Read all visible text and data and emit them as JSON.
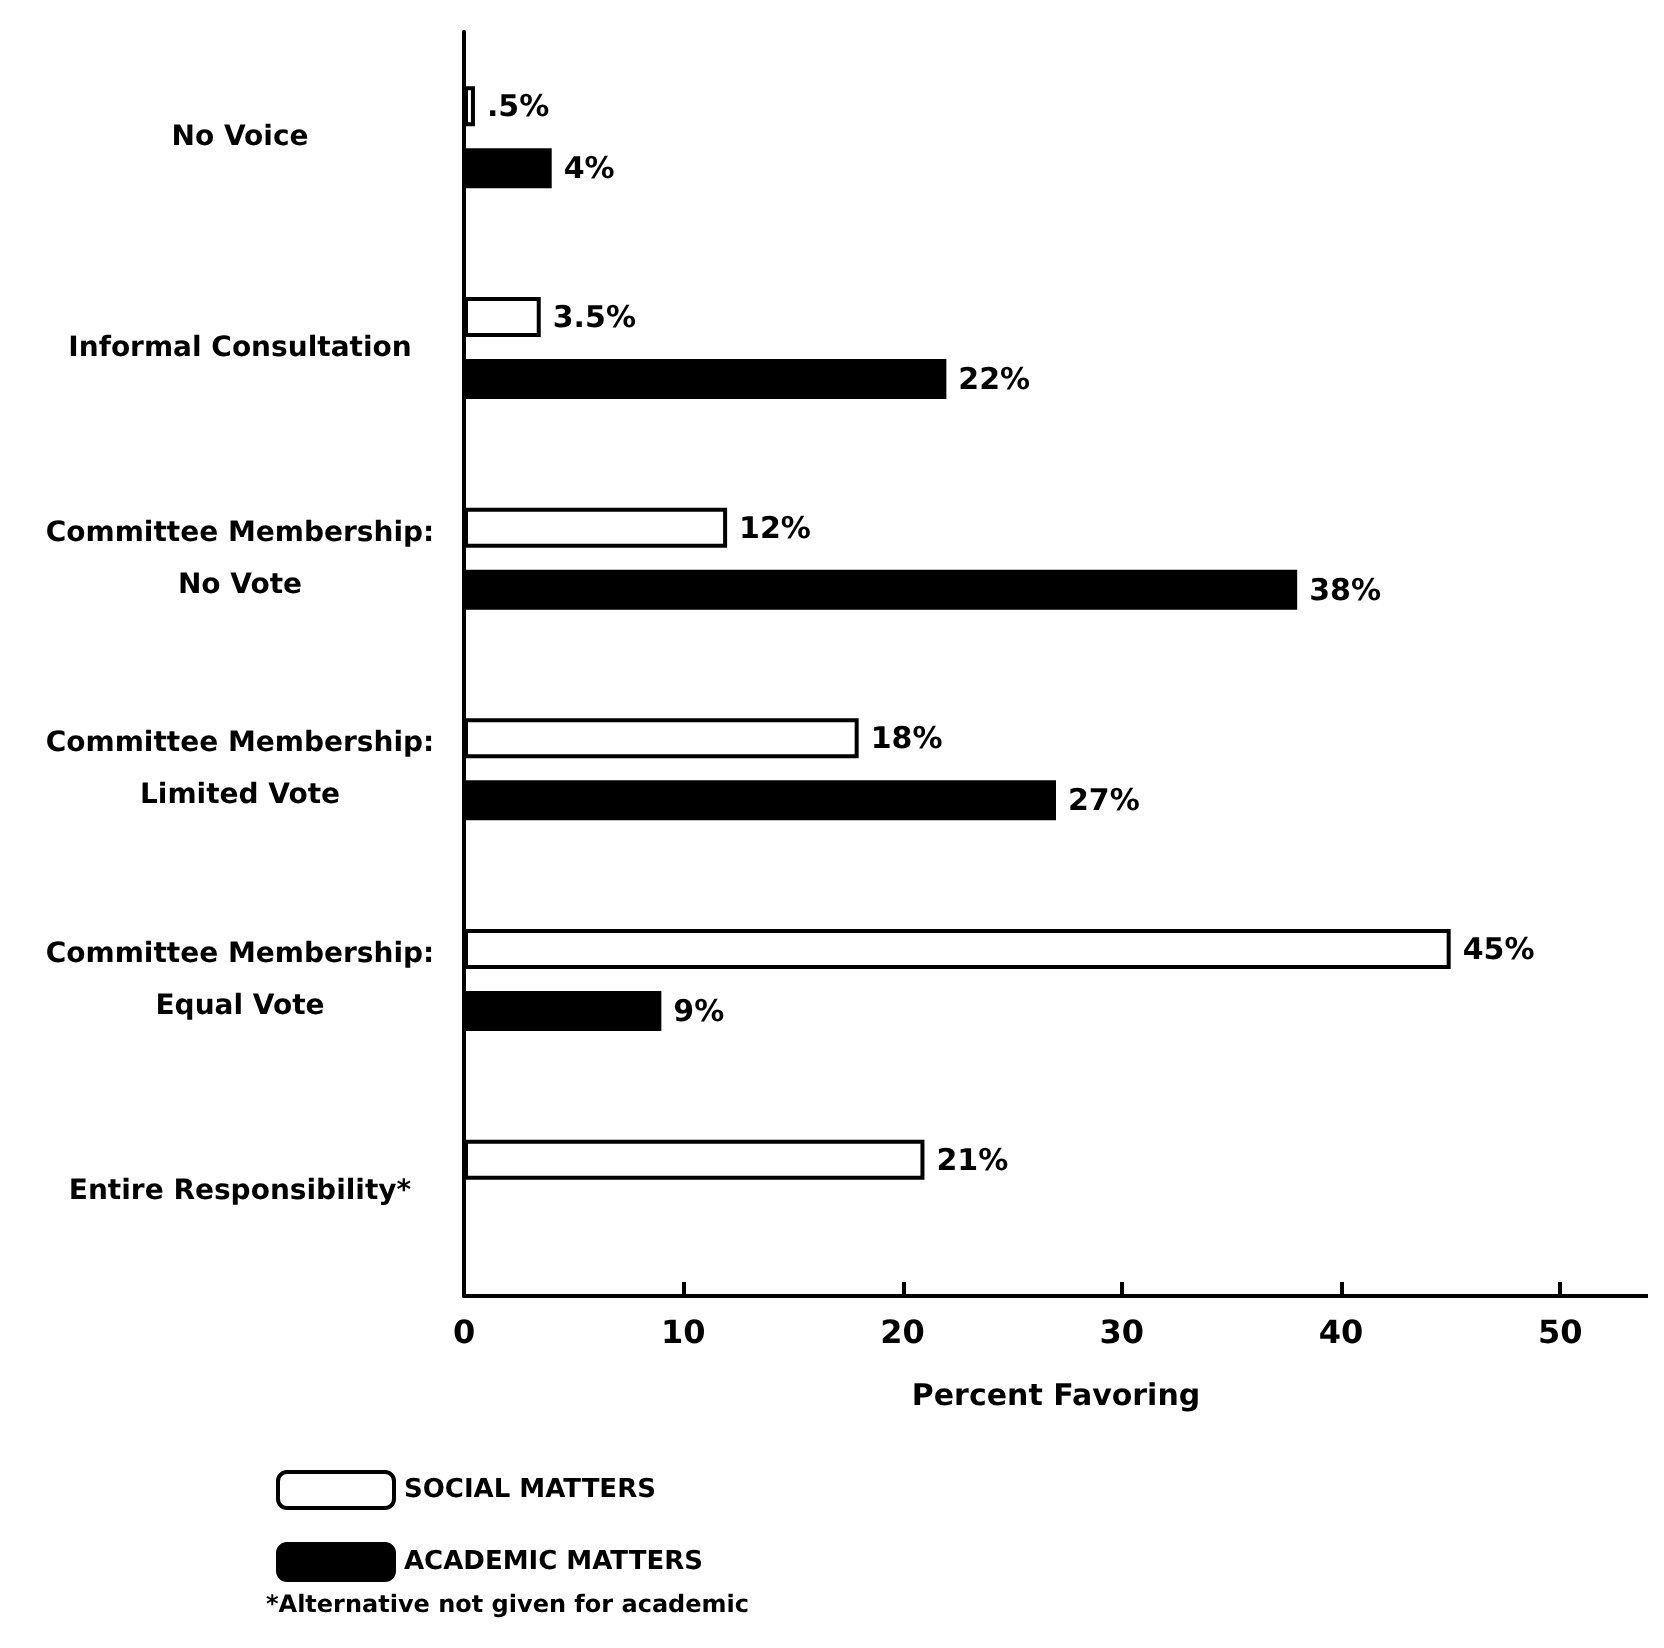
{
  "chart_data": {
    "type": "bar",
    "orientation": "horizontal",
    "xlabel": "Percent Favoring",
    "categories": [
      "No Voice",
      "Informal Consultation",
      "Committee Membership:\nNo Vote",
      "Committee Membership:\nLimited Vote",
      "Committee Membership:\nEqual Vote",
      "Entire Responsibility*"
    ],
    "series": [
      {
        "name": "SOCIAL MATTERS",
        "color": "#ffffff",
        "values": [
          0.5,
          3.5,
          12,
          18,
          45,
          21
        ],
        "value_labels": [
          ".5%",
          "3.5%",
          "12%",
          "18%",
          "45%",
          "21%"
        ]
      },
      {
        "name": "ACADEMIC MATTERS",
        "color": "#000000",
        "values": [
          4,
          22,
          38,
          27,
          9,
          null
        ],
        "value_labels": [
          "4%",
          "22%",
          "38%",
          "27%",
          "9%",
          null
        ]
      }
    ],
    "xlim": [
      0,
      54
    ],
    "xticks": [
      0,
      10,
      20,
      30,
      40,
      50
    ],
    "legend": "bottom left",
    "annotations": [
      "*Alternative not given for academic"
    ]
  }
}
